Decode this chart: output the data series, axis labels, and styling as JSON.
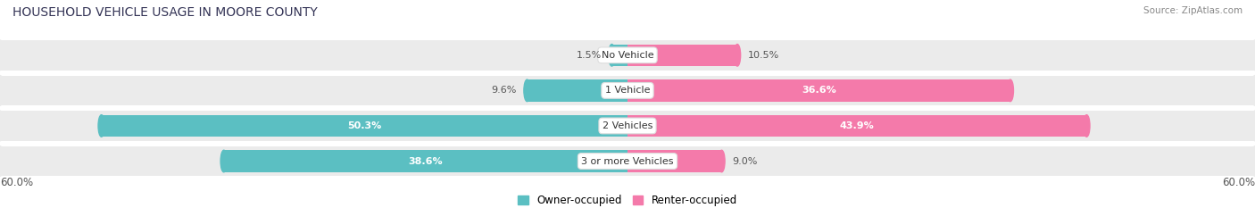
{
  "title": "HOUSEHOLD VEHICLE USAGE IN MOORE COUNTY",
  "source": "Source: ZipAtlas.com",
  "categories": [
    "No Vehicle",
    "1 Vehicle",
    "2 Vehicles",
    "3 or more Vehicles"
  ],
  "owner_values": [
    1.5,
    9.6,
    50.3,
    38.6
  ],
  "renter_values": [
    10.5,
    36.6,
    43.9,
    9.0
  ],
  "owner_color": "#5bbfc2",
  "renter_color": "#f47aaa",
  "owner_label": "Owner-occupied",
  "renter_label": "Renter-occupied",
  "axis_max": 60.0,
  "axis_label_left": "60.0%",
  "axis_label_right": "60.0%",
  "bg_color": "#ffffff",
  "bar_bg_color": "#ebebeb",
  "title_fontsize": 10,
  "source_fontsize": 7.5,
  "bar_label_fontsize": 8,
  "legend_fontsize": 8.5,
  "axis_tick_fontsize": 8.5,
  "cat_label_fontsize": 8
}
